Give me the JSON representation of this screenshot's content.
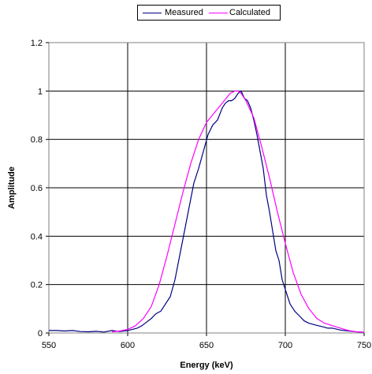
{
  "chart_data": {
    "type": "line",
    "title": "",
    "xlabel": "Energy (keV)",
    "ylabel": "Amplitude",
    "xlim": [
      550,
      750
    ],
    "ylim": [
      0,
      1.2
    ],
    "xticks": [
      550,
      600,
      650,
      700,
      750
    ],
    "yticks": [
      0,
      0.2,
      0.4,
      0.6,
      0.8,
      1,
      1.2
    ],
    "x_tick_labels": [
      "550",
      "600",
      "650",
      "700",
      "750"
    ],
    "y_tick_labels": [
      "0",
      "0.2",
      "0.4",
      "0.6",
      "0.8",
      "1",
      "1.2"
    ],
    "grid": true,
    "legend_position": "top-center",
    "series": [
      {
        "name": "Measured",
        "color": "#000080",
        "x": [
          550,
          555,
          560,
          565,
          570,
          575,
          580,
          585,
          590,
          595,
          600,
          603,
          606,
          609,
          612,
          615,
          618,
          621,
          624,
          627,
          630,
          633,
          636,
          639,
          642,
          645,
          648,
          651,
          654,
          657,
          660,
          662,
          664,
          666,
          668,
          670,
          672,
          674,
          676,
          678,
          680,
          682,
          684,
          686,
          688,
          690,
          692,
          694,
          696,
          698,
          700,
          703,
          706,
          709,
          712,
          715,
          718,
          721,
          724,
          727,
          730,
          735,
          740,
          745,
          750
        ],
        "y": [
          0.01,
          0.01,
          0.008,
          0.01,
          0.006,
          0.005,
          0.007,
          0.004,
          0.01,
          0.006,
          0.01,
          0.015,
          0.02,
          0.03,
          0.045,
          0.06,
          0.08,
          0.09,
          0.12,
          0.15,
          0.22,
          0.32,
          0.42,
          0.52,
          0.62,
          0.68,
          0.75,
          0.82,
          0.86,
          0.88,
          0.93,
          0.95,
          0.96,
          0.96,
          0.97,
          0.99,
          1.0,
          0.97,
          0.96,
          0.93,
          0.88,
          0.82,
          0.75,
          0.68,
          0.57,
          0.5,
          0.42,
          0.34,
          0.3,
          0.22,
          0.18,
          0.12,
          0.09,
          0.07,
          0.05,
          0.04,
          0.035,
          0.03,
          0.025,
          0.02,
          0.02,
          0.012,
          0.008,
          0.005,
          0.003
        ]
      },
      {
        "name": "Calculated",
        "color": "#ff00ff",
        "x": [
          590,
          595,
          600,
          605,
          610,
          615,
          620,
          625,
          630,
          635,
          640,
          645,
          650,
          655,
          660,
          665,
          668,
          670,
          672,
          675,
          680,
          685,
          690,
          695,
          700,
          705,
          710,
          715,
          720,
          725,
          730,
          735,
          740,
          745,
          750
        ],
        "y": [
          0.005,
          0.008,
          0.015,
          0.03,
          0.06,
          0.11,
          0.2,
          0.32,
          0.45,
          0.58,
          0.7,
          0.8,
          0.87,
          0.91,
          0.95,
          0.99,
          1.0,
          1.0,
          0.99,
          0.96,
          0.89,
          0.77,
          0.64,
          0.5,
          0.37,
          0.25,
          0.16,
          0.1,
          0.06,
          0.04,
          0.03,
          0.02,
          0.01,
          0.005,
          0.003
        ]
      }
    ]
  }
}
